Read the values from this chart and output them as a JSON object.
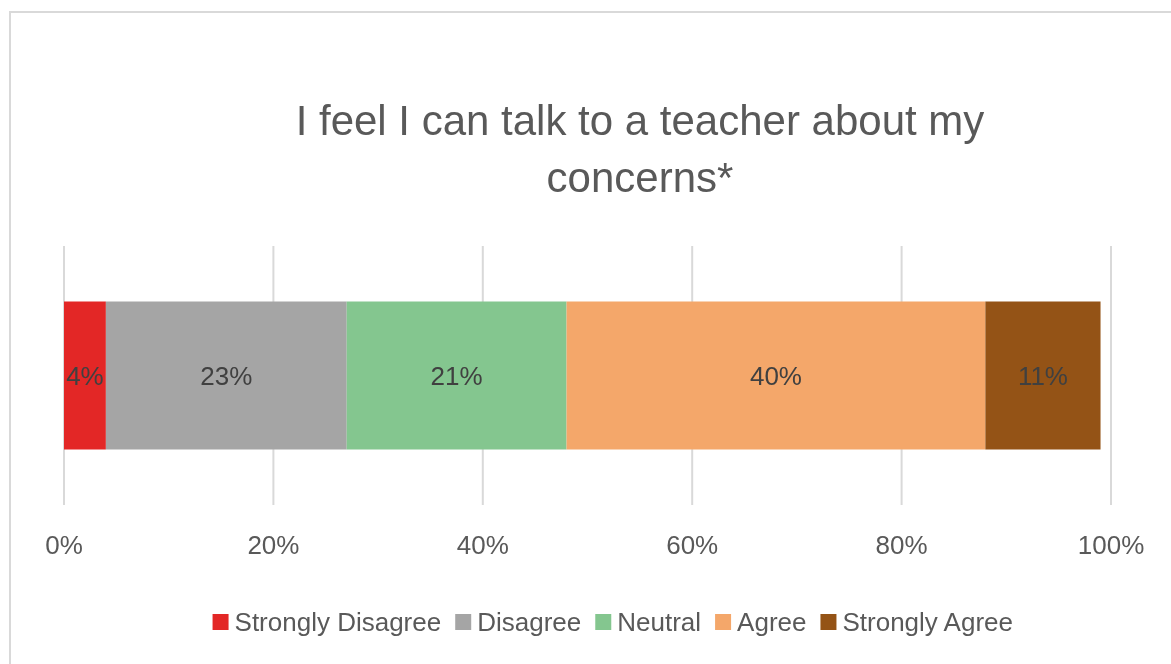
{
  "chart_data": {
    "type": "bar",
    "orientation": "horizontal",
    "stacked": true,
    "title": "I feel I can talk to a teacher about my concerns*",
    "categories": [
      null
    ],
    "series": [
      {
        "name": "Strongly Disagree",
        "color": "#e32726",
        "values": [
          4
        ],
        "value_labels": [
          "4%"
        ]
      },
      {
        "name": "Disagree",
        "color": "#a5a5a5",
        "values": [
          23
        ],
        "value_labels": [
          "23%"
        ]
      },
      {
        "name": "Neutral",
        "color": "#84c68f",
        "values": [
          21
        ],
        "value_labels": [
          "21%"
        ]
      },
      {
        "name": "Agree",
        "color": "#f4a76a",
        "values": [
          40
        ],
        "value_labels": [
          "40%"
        ]
      },
      {
        "name": "Strongly Agree",
        "color": "#945316",
        "values": [
          11
        ],
        "value_labels": [
          "11%"
        ]
      }
    ],
    "xlim": [
      0,
      100
    ],
    "xticks": [
      {
        "value": 0,
        "label": "0%"
      },
      {
        "value": 20,
        "label": "20%"
      },
      {
        "value": 40,
        "label": "40%"
      },
      {
        "value": 60,
        "label": "60%"
      },
      {
        "value": 80,
        "label": "80%"
      },
      {
        "value": 100,
        "label": "100%"
      }
    ],
    "grid": "x",
    "legend": "bottom"
  }
}
